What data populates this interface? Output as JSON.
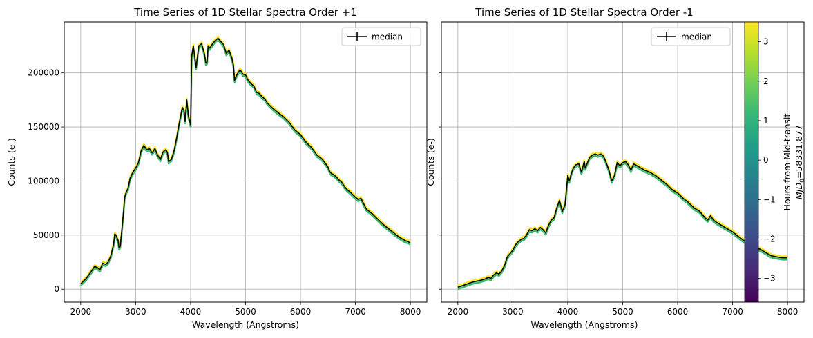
{
  "chart_data": [
    {
      "type": "line",
      "title": "Time Series of 1D Stellar Spectra Order +1",
      "xlabel": "Wavelength (Angstroms)",
      "ylabel": "Counts (e-)",
      "xlim": [
        1700,
        8300
      ],
      "ylim": [
        -12000,
        247000
      ],
      "xticks": [
        2000,
        3000,
        4000,
        5000,
        6000,
        7000,
        8000
      ],
      "xtick_labels": [
        "2000",
        "3000",
        "4000",
        "5000",
        "6000",
        "7000",
        "8000"
      ],
      "yticks": [
        0,
        50000,
        100000,
        150000,
        200000
      ],
      "ytick_labels": [
        "0",
        "50000",
        "100000",
        "150000",
        "200000"
      ],
      "grid": true,
      "legend": {
        "position": "upper right",
        "entries": [
          "median"
        ]
      },
      "series": [
        {
          "name": "median",
          "x": [
            2000,
            2100,
            2200,
            2250,
            2300,
            2350,
            2400,
            2450,
            2500,
            2550,
            2600,
            2620,
            2640,
            2680,
            2700,
            2720,
            2750,
            2780,
            2800,
            2830,
            2860,
            2900,
            2950,
            3000,
            3050,
            3100,
            3150,
            3200,
            3250,
            3300,
            3350,
            3400,
            3450,
            3500,
            3550,
            3580,
            3600,
            3650,
            3700,
            3750,
            3780,
            3800,
            3850,
            3880,
            3900,
            3930,
            3960,
            4000,
            4020,
            4050,
            4080,
            4100,
            4150,
            4200,
            4250,
            4280,
            4300,
            4320,
            4350,
            4400,
            4450,
            4500,
            4550,
            4600,
            4650,
            4700,
            4750,
            4780,
            4800,
            4830,
            4860,
            4900,
            4950,
            5000,
            5050,
            5100,
            5150,
            5200,
            5250,
            5300,
            5350,
            5400,
            5500,
            5600,
            5700,
            5800,
            5900,
            6000,
            6100,
            6200,
            6300,
            6400,
            6500,
            6530,
            6560,
            6600,
            6650,
            6700,
            6750,
            6800,
            6850,
            6900,
            7000,
            7050,
            7100,
            7150,
            7200,
            7300,
            7400,
            7500,
            7600,
            7700,
            7800,
            7900,
            8000
          ],
          "values": [
            5000,
            10000,
            17000,
            21000,
            20000,
            18000,
            24000,
            23000,
            25000,
            31000,
            42000,
            51000,
            50000,
            45000,
            38000,
            40000,
            55000,
            72000,
            85000,
            90000,
            93000,
            103000,
            108000,
            112000,
            117000,
            128000,
            133000,
            129000,
            130000,
            126000,
            130000,
            124000,
            120000,
            127000,
            129000,
            126000,
            118000,
            120000,
            128000,
            141000,
            150000,
            155000,
            168000,
            165000,
            155000,
            175000,
            160000,
            152000,
            215000,
            225000,
            213000,
            205000,
            225000,
            227000,
            218000,
            209000,
            210000,
            225000,
            223000,
            227000,
            230000,
            232000,
            229000,
            226000,
            218000,
            221000,
            214000,
            207000,
            193000,
            197000,
            200000,
            203000,
            199000,
            198000,
            193000,
            190000,
            188000,
            182000,
            181000,
            178000,
            176000,
            172000,
            167000,
            163000,
            159000,
            154000,
            147000,
            143000,
            136000,
            131000,
            124000,
            120000,
            113000,
            109000,
            107000,
            106000,
            104000,
            101000,
            99000,
            95000,
            92000,
            90000,
            85000,
            83000,
            84000,
            79000,
            74000,
            70000,
            65000,
            60000,
            56000,
            52000,
            48000,
            45000,
            43000
          ]
        }
      ]
    },
    {
      "type": "line",
      "title": "Time Series of 1D Stellar Spectra Order -1",
      "xlabel": "Wavelength (Angstroms)",
      "ylabel": "Counts (e-)",
      "xlim": [
        1700,
        8300
      ],
      "ylim": [
        -12000,
        247000
      ],
      "xticks": [
        2000,
        3000,
        4000,
        5000,
        6000,
        7000,
        8000
      ],
      "xtick_labels": [
        "2000",
        "3000",
        "4000",
        "5000",
        "6000",
        "7000",
        "8000"
      ],
      "grid": true,
      "legend": {
        "position": "upper right",
        "entries": [
          "median"
        ]
      },
      "series": [
        {
          "name": "median",
          "x": [
            2000,
            2100,
            2200,
            2300,
            2400,
            2500,
            2550,
            2600,
            2650,
            2700,
            2750,
            2800,
            2850,
            2900,
            2950,
            3000,
            3050,
            3100,
            3150,
            3200,
            3250,
            3300,
            3350,
            3400,
            3450,
            3500,
            3550,
            3600,
            3650,
            3700,
            3750,
            3800,
            3850,
            3900,
            3950,
            4000,
            4030,
            4060,
            4100,
            4150,
            4200,
            4250,
            4300,
            4320,
            4350,
            4400,
            4450,
            4500,
            4550,
            4600,
            4650,
            4700,
            4750,
            4800,
            4850,
            4900,
            4950,
            5000,
            5050,
            5100,
            5150,
            5200,
            5300,
            5400,
            5500,
            5600,
            5700,
            5800,
            5900,
            6000,
            6100,
            6200,
            6300,
            6400,
            6500,
            6550,
            6600,
            6650,
            6700,
            6800,
            6900,
            7000,
            7100,
            7200,
            7300,
            7400,
            7500,
            7600,
            7700,
            7800,
            7900,
            8000
          ],
          "values": [
            2000,
            3500,
            5500,
            7000,
            8000,
            9500,
            11000,
            10000,
            13000,
            15000,
            14000,
            17000,
            22000,
            30000,
            33000,
            36000,
            41000,
            44000,
            46000,
            47000,
            50000,
            55000,
            54000,
            56000,
            54000,
            57000,
            55000,
            52000,
            59000,
            64000,
            66000,
            75000,
            82000,
            72000,
            78000,
            105000,
            100000,
            106000,
            112000,
            115000,
            116000,
            108000,
            118000,
            112000,
            116000,
            122000,
            124000,
            125000,
            124000,
            125000,
            123000,
            117000,
            110000,
            100000,
            105000,
            117000,
            114000,
            117000,
            118000,
            115000,
            110000,
            116000,
            113000,
            110000,
            108000,
            105000,
            101000,
            97000,
            92000,
            89000,
            84000,
            80000,
            75000,
            72000,
            66000,
            64000,
            68000,
            64000,
            62000,
            59000,
            56000,
            53000,
            49000,
            45000,
            42000,
            39000,
            37000,
            34000,
            31000,
            30000,
            29000,
            29000
          ]
        }
      ]
    }
  ],
  "colorbar": {
    "label_line1": "Hours from Mid-transit",
    "label_line2_main": "MJD",
    "label_line2_sub": "0",
    "label_line2_rest": "=58331.877",
    "range": [
      -3.6,
      3.5
    ],
    "ticks": [
      -3,
      -2,
      -1,
      0,
      1,
      2,
      3
    ],
    "tick_labels": [
      "−3",
      "−2",
      "−1",
      "0",
      "1",
      "2",
      "3"
    ],
    "colormap": "viridis",
    "stops": [
      "#440154",
      "#482878",
      "#3e4989",
      "#31688e",
      "#26828e",
      "#1f9e89",
      "#35b779",
      "#6ece58",
      "#b5de2b",
      "#fde725"
    ]
  },
  "colors": {
    "median": "#000000",
    "grid": "#b0b0b0",
    "spread_low": "#35b779",
    "spread_high": "#fde725",
    "spread_mid": "#6ece58"
  }
}
